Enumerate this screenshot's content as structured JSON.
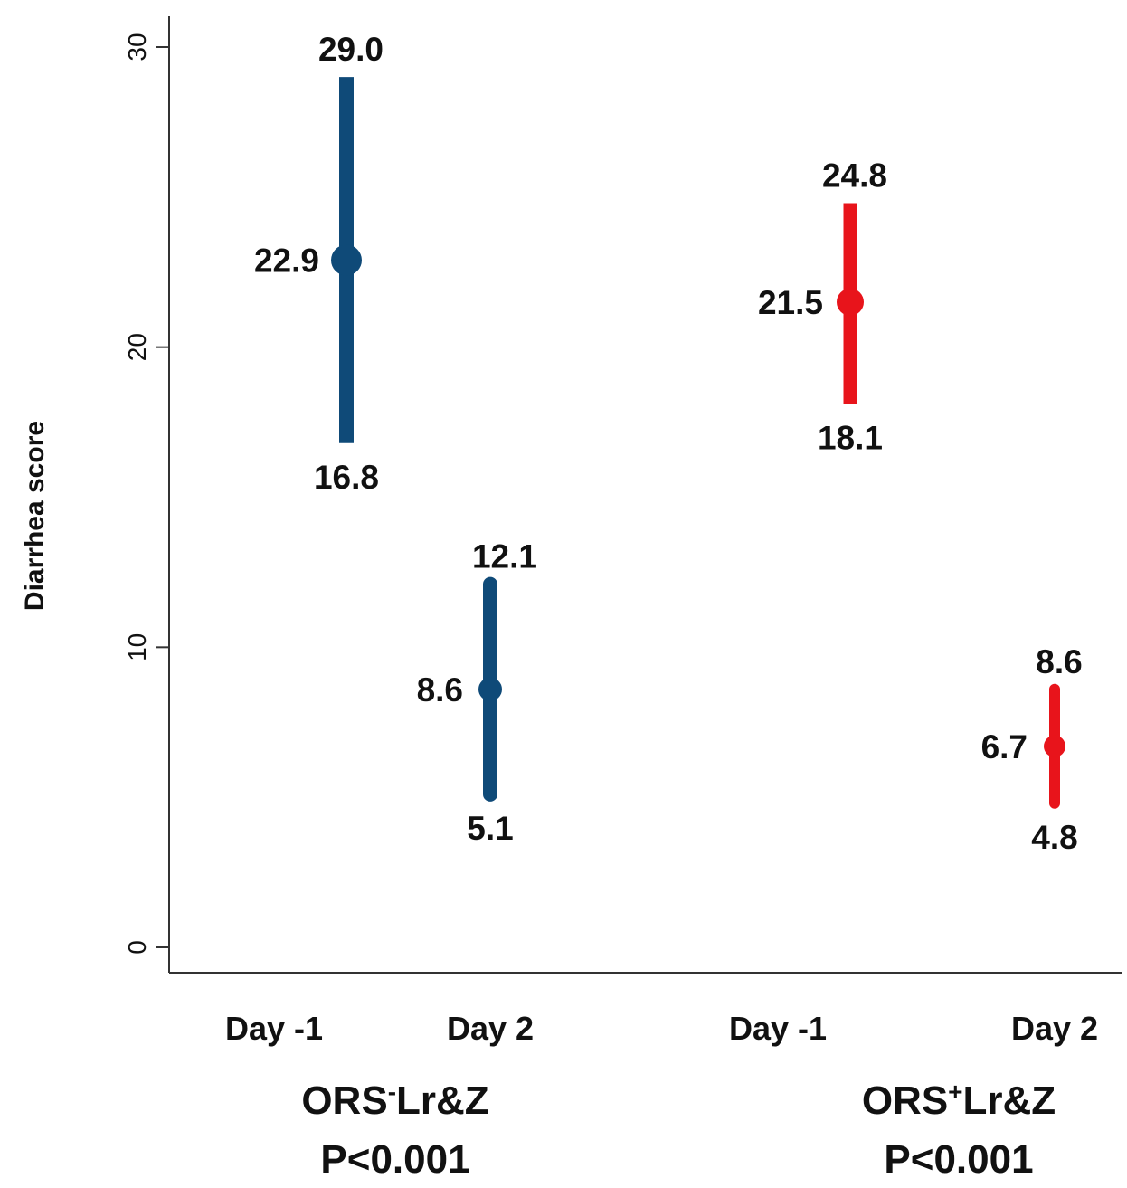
{
  "chart_data": {
    "type": "errorbar",
    "title": "",
    "xlabel": "",
    "ylabel": "Diarrhea score",
    "ylim": [
      0,
      30
    ],
    "yticks": [
      "0",
      "10",
      "20",
      "30"
    ],
    "grid": false,
    "legend": "none",
    "groups": [
      {
        "name_main": "ORS",
        "name_sup": "-",
        "name_rest": "Lr&Z",
        "pvalue": "P<0.001",
        "color": "#0f4a78",
        "points": [
          {
            "category": "Day -1",
            "mean": 22.9,
            "lower": 16.8,
            "upper": 29.0,
            "mean_label": "22.9",
            "lower_label": "16.8",
            "upper_label": "29.0"
          },
          {
            "category": "Day 2",
            "mean": 8.6,
            "lower": 5.1,
            "upper": 12.1,
            "mean_label": "8.6",
            "lower_label": "5.1",
            "upper_label": "12.1"
          }
        ]
      },
      {
        "name_main": "ORS",
        "name_sup": "+",
        "name_rest": "Lr&Z",
        "pvalue": "P<0.001",
        "color": "#e8141b",
        "points": [
          {
            "category": "Day -1",
            "mean": 21.5,
            "lower": 18.1,
            "upper": 24.8,
            "mean_label": "21.5",
            "lower_label": "18.1",
            "upper_label": "24.8"
          },
          {
            "category": "Day 2",
            "mean": 6.7,
            "lower": 4.8,
            "upper": 8.6,
            "mean_label": "6.7",
            "lower_label": "4.8",
            "upper_label": "8.6"
          }
        ]
      }
    ]
  }
}
